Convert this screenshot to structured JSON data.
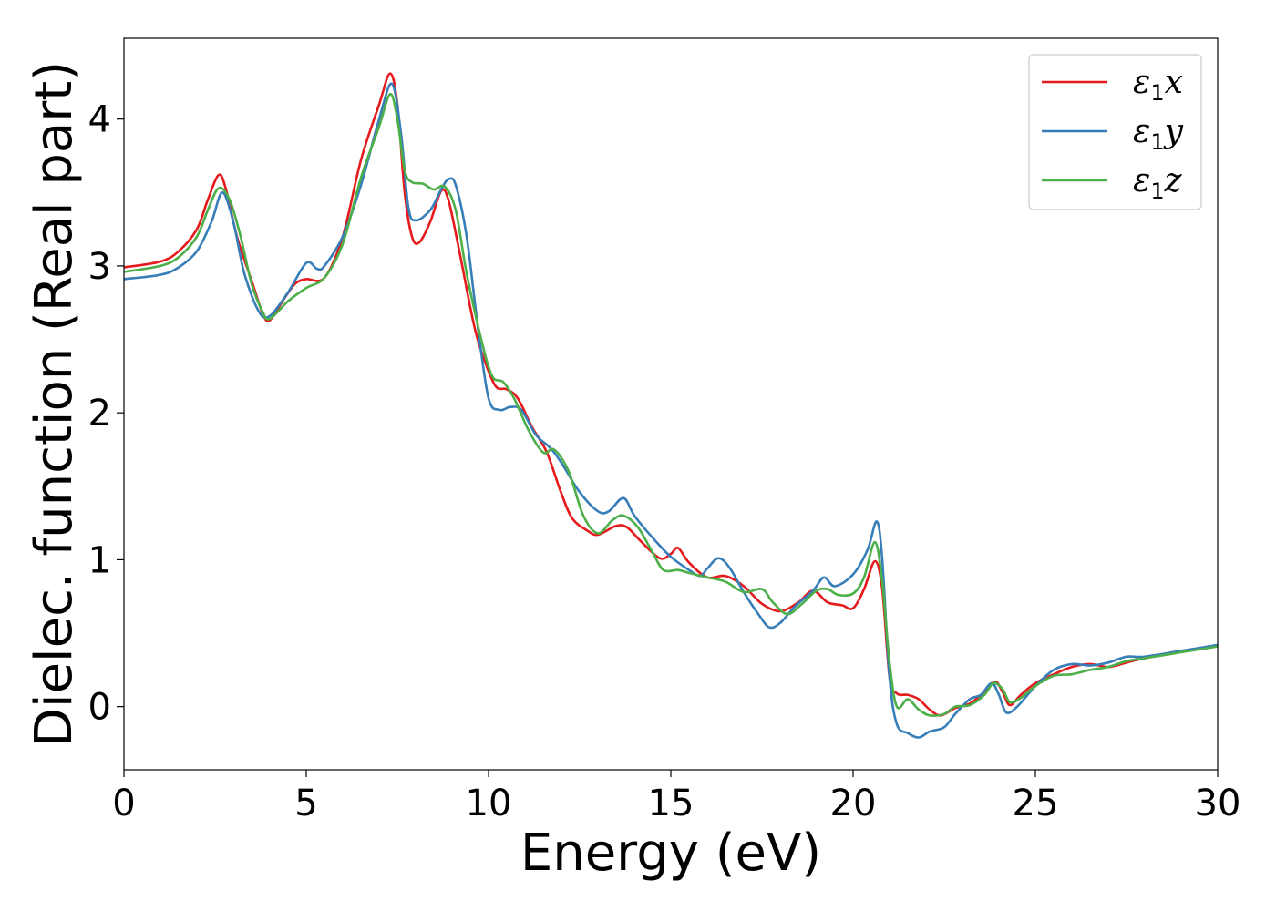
{
  "chart_data": {
    "type": "line",
    "xlabel": "Energy (eV)",
    "ylabel": "Dielec. function (Real part)",
    "xlim": [
      0,
      30
    ],
    "ylim": [
      -0.43,
      4.55
    ],
    "xticks": [
      0,
      5,
      10,
      15,
      20,
      25,
      30
    ],
    "yticks": [
      0,
      1,
      2,
      3,
      4
    ],
    "grid": false,
    "legend_position": "top-right",
    "series": [
      {
        "name": "ε1x",
        "symbol": "ε",
        "sub": "1",
        "axis": "x",
        "color": "#e41a1c",
        "points": [
          [
            0,
            2.99
          ],
          [
            1,
            3.03
          ],
          [
            1.5,
            3.1
          ],
          [
            2,
            3.25
          ],
          [
            2.3,
            3.45
          ],
          [
            2.6,
            3.62
          ],
          [
            2.8,
            3.52
          ],
          [
            3.1,
            3.2
          ],
          [
            3.5,
            2.9
          ],
          [
            3.8,
            2.68
          ],
          [
            4,
            2.63
          ],
          [
            4.4,
            2.78
          ],
          [
            4.7,
            2.88
          ],
          [
            5,
            2.91
          ],
          [
            5.5,
            2.92
          ],
          [
            6,
            3.2
          ],
          [
            6.5,
            3.72
          ],
          [
            7,
            4.1
          ],
          [
            7.3,
            4.31
          ],
          [
            7.5,
            4.1
          ],
          [
            7.7,
            3.5
          ],
          [
            7.9,
            3.2
          ],
          [
            8.1,
            3.16
          ],
          [
            8.4,
            3.3
          ],
          [
            8.7,
            3.51
          ],
          [
            8.9,
            3.45
          ],
          [
            9.2,
            3.1
          ],
          [
            9.6,
            2.6
          ],
          [
            9.9,
            2.35
          ],
          [
            10.2,
            2.18
          ],
          [
            10.5,
            2.16
          ],
          [
            10.8,
            2.1
          ],
          [
            11.2,
            1.9
          ],
          [
            11.6,
            1.73
          ],
          [
            12,
            1.45
          ],
          [
            12.3,
            1.28
          ],
          [
            12.7,
            1.2
          ],
          [
            13,
            1.17
          ],
          [
            13.5,
            1.23
          ],
          [
            13.8,
            1.22
          ],
          [
            14.2,
            1.12
          ],
          [
            14.7,
            1.01
          ],
          [
            15,
            1.04
          ],
          [
            15.2,
            1.08
          ],
          [
            15.5,
            0.98
          ],
          [
            16,
            0.88
          ],
          [
            16.5,
            0.89
          ],
          [
            17,
            0.82
          ],
          [
            17.5,
            0.7
          ],
          [
            18,
            0.65
          ],
          [
            18.5,
            0.71
          ],
          [
            18.9,
            0.79
          ],
          [
            19.3,
            0.71
          ],
          [
            19.7,
            0.69
          ],
          [
            20,
            0.67
          ],
          [
            20.3,
            0.8
          ],
          [
            20.6,
            0.99
          ],
          [
            20.8,
            0.8
          ],
          [
            21,
            0.2
          ],
          [
            21.2,
            0.09
          ],
          [
            21.5,
            0.08
          ],
          [
            21.8,
            0.05
          ],
          [
            22.1,
            -0.02
          ],
          [
            22.4,
            -0.06
          ],
          [
            22.8,
            -0.01
          ],
          [
            23.2,
            0.02
          ],
          [
            23.6,
            0.1
          ],
          [
            23.9,
            0.17
          ],
          [
            24.1,
            0.1
          ],
          [
            24.3,
            0.01
          ],
          [
            24.6,
            0.08
          ],
          [
            25,
            0.16
          ],
          [
            25.5,
            0.22
          ],
          [
            26,
            0.27
          ],
          [
            26.5,
            0.29
          ],
          [
            27,
            0.27
          ],
          [
            27.5,
            0.3
          ],
          [
            28,
            0.33
          ],
          [
            29,
            0.38
          ],
          [
            30,
            0.41
          ]
        ]
      },
      {
        "name": "ε1y",
        "symbol": "ε",
        "sub": "1",
        "axis": "y",
        "color": "#377eb8",
        "points": [
          [
            0,
            2.91
          ],
          [
            1,
            2.94
          ],
          [
            1.5,
            2.99
          ],
          [
            2,
            3.1
          ],
          [
            2.4,
            3.3
          ],
          [
            2.7,
            3.5
          ],
          [
            3,
            3.3
          ],
          [
            3.3,
            2.95
          ],
          [
            3.7,
            2.69
          ],
          [
            4,
            2.66
          ],
          [
            4.5,
            2.82
          ],
          [
            5,
            3.02
          ],
          [
            5.3,
            2.98
          ],
          [
            5.5,
            3.0
          ],
          [
            6,
            3.2
          ],
          [
            6.5,
            3.55
          ],
          [
            7,
            4.0
          ],
          [
            7.35,
            4.24
          ],
          [
            7.6,
            3.9
          ],
          [
            7.8,
            3.4
          ],
          [
            8,
            3.31
          ],
          [
            8.4,
            3.38
          ],
          [
            8.7,
            3.52
          ],
          [
            8.9,
            3.59
          ],
          [
            9.1,
            3.55
          ],
          [
            9.4,
            3.2
          ],
          [
            9.7,
            2.6
          ],
          [
            10,
            2.1
          ],
          [
            10.3,
            2.02
          ],
          [
            10.6,
            2.04
          ],
          [
            10.9,
            2.02
          ],
          [
            11.3,
            1.85
          ],
          [
            11.7,
            1.76
          ],
          [
            12,
            1.66
          ],
          [
            12.5,
            1.46
          ],
          [
            13,
            1.33
          ],
          [
            13.3,
            1.33
          ],
          [
            13.7,
            1.42
          ],
          [
            14,
            1.3
          ],
          [
            14.5,
            1.15
          ],
          [
            15,
            1.02
          ],
          [
            15.5,
            0.93
          ],
          [
            15.8,
            0.89
          ],
          [
            16,
            0.94
          ],
          [
            16.3,
            1.01
          ],
          [
            16.6,
            0.95
          ],
          [
            17,
            0.78
          ],
          [
            17.4,
            0.63
          ],
          [
            17.7,
            0.54
          ],
          [
            18,
            0.57
          ],
          [
            18.4,
            0.68
          ],
          [
            18.9,
            0.79
          ],
          [
            19.2,
            0.88
          ],
          [
            19.5,
            0.82
          ],
          [
            20,
            0.9
          ],
          [
            20.4,
            1.07
          ],
          [
            20.65,
            1.26
          ],
          [
            20.8,
            1.0
          ],
          [
            21,
            0.2
          ],
          [
            21.2,
            -0.12
          ],
          [
            21.5,
            -0.18
          ],
          [
            21.8,
            -0.21
          ],
          [
            22.1,
            -0.17
          ],
          [
            22.5,
            -0.14
          ],
          [
            22.8,
            -0.05
          ],
          [
            23.2,
            0.05
          ],
          [
            23.5,
            0.08
          ],
          [
            23.8,
            0.16
          ],
          [
            24,
            0.08
          ],
          [
            24.2,
            -0.04
          ],
          [
            24.5,
            0.0
          ],
          [
            25,
            0.14
          ],
          [
            25.5,
            0.25
          ],
          [
            26,
            0.29
          ],
          [
            26.5,
            0.28
          ],
          [
            27,
            0.3
          ],
          [
            27.5,
            0.34
          ],
          [
            28,
            0.34
          ],
          [
            29,
            0.38
          ],
          [
            30,
            0.42
          ]
        ]
      },
      {
        "name": "ε1z",
        "symbol": "ε",
        "sub": "1",
        "axis": "z",
        "color": "#4daf4a",
        "points": [
          [
            0,
            2.96
          ],
          [
            1,
            3.0
          ],
          [
            1.5,
            3.06
          ],
          [
            2,
            3.2
          ],
          [
            2.3,
            3.38
          ],
          [
            2.6,
            3.53
          ],
          [
            2.9,
            3.45
          ],
          [
            3.2,
            3.2
          ],
          [
            3.5,
            2.88
          ],
          [
            3.8,
            2.69
          ],
          [
            4,
            2.64
          ],
          [
            4.5,
            2.76
          ],
          [
            5,
            2.85
          ],
          [
            5.5,
            2.92
          ],
          [
            6,
            3.15
          ],
          [
            6.5,
            3.6
          ],
          [
            7,
            3.95
          ],
          [
            7.3,
            4.17
          ],
          [
            7.5,
            4.0
          ],
          [
            7.7,
            3.65
          ],
          [
            7.9,
            3.57
          ],
          [
            8.2,
            3.56
          ],
          [
            8.5,
            3.52
          ],
          [
            8.8,
            3.54
          ],
          [
            9.1,
            3.38
          ],
          [
            9.4,
            2.95
          ],
          [
            9.8,
            2.5
          ],
          [
            10.1,
            2.25
          ],
          [
            10.4,
            2.21
          ],
          [
            10.7,
            2.1
          ],
          [
            11.1,
            1.88
          ],
          [
            11.5,
            1.73
          ],
          [
            11.8,
            1.75
          ],
          [
            12.2,
            1.6
          ],
          [
            12.6,
            1.3
          ],
          [
            13,
            1.18
          ],
          [
            13.4,
            1.27
          ],
          [
            13.7,
            1.3
          ],
          [
            14.1,
            1.22
          ],
          [
            14.5,
            1.05
          ],
          [
            14.8,
            0.93
          ],
          [
            15.2,
            0.93
          ],
          [
            15.5,
            0.91
          ],
          [
            16,
            0.88
          ],
          [
            16.5,
            0.85
          ],
          [
            17,
            0.78
          ],
          [
            17.5,
            0.8
          ],
          [
            17.8,
            0.71
          ],
          [
            18.2,
            0.63
          ],
          [
            18.6,
            0.7
          ],
          [
            19,
            0.79
          ],
          [
            19.3,
            0.8
          ],
          [
            19.6,
            0.76
          ],
          [
            20,
            0.77
          ],
          [
            20.3,
            0.88
          ],
          [
            20.6,
            1.12
          ],
          [
            20.8,
            0.85
          ],
          [
            21,
            0.3
          ],
          [
            21.2,
            0.0
          ],
          [
            21.5,
            0.05
          ],
          [
            21.8,
            -0.02
          ],
          [
            22.1,
            -0.06
          ],
          [
            22.5,
            -0.05
          ],
          [
            22.8,
            0.0
          ],
          [
            23.2,
            0.01
          ],
          [
            23.6,
            0.08
          ],
          [
            23.85,
            0.16
          ],
          [
            24.1,
            0.12
          ],
          [
            24.3,
            0.03
          ],
          [
            24.6,
            0.06
          ],
          [
            25,
            0.14
          ],
          [
            25.5,
            0.21
          ],
          [
            26,
            0.22
          ],
          [
            26.5,
            0.25
          ],
          [
            27,
            0.27
          ],
          [
            27.5,
            0.31
          ],
          [
            28,
            0.33
          ],
          [
            29,
            0.37
          ],
          [
            30,
            0.41
          ]
        ]
      }
    ]
  }
}
